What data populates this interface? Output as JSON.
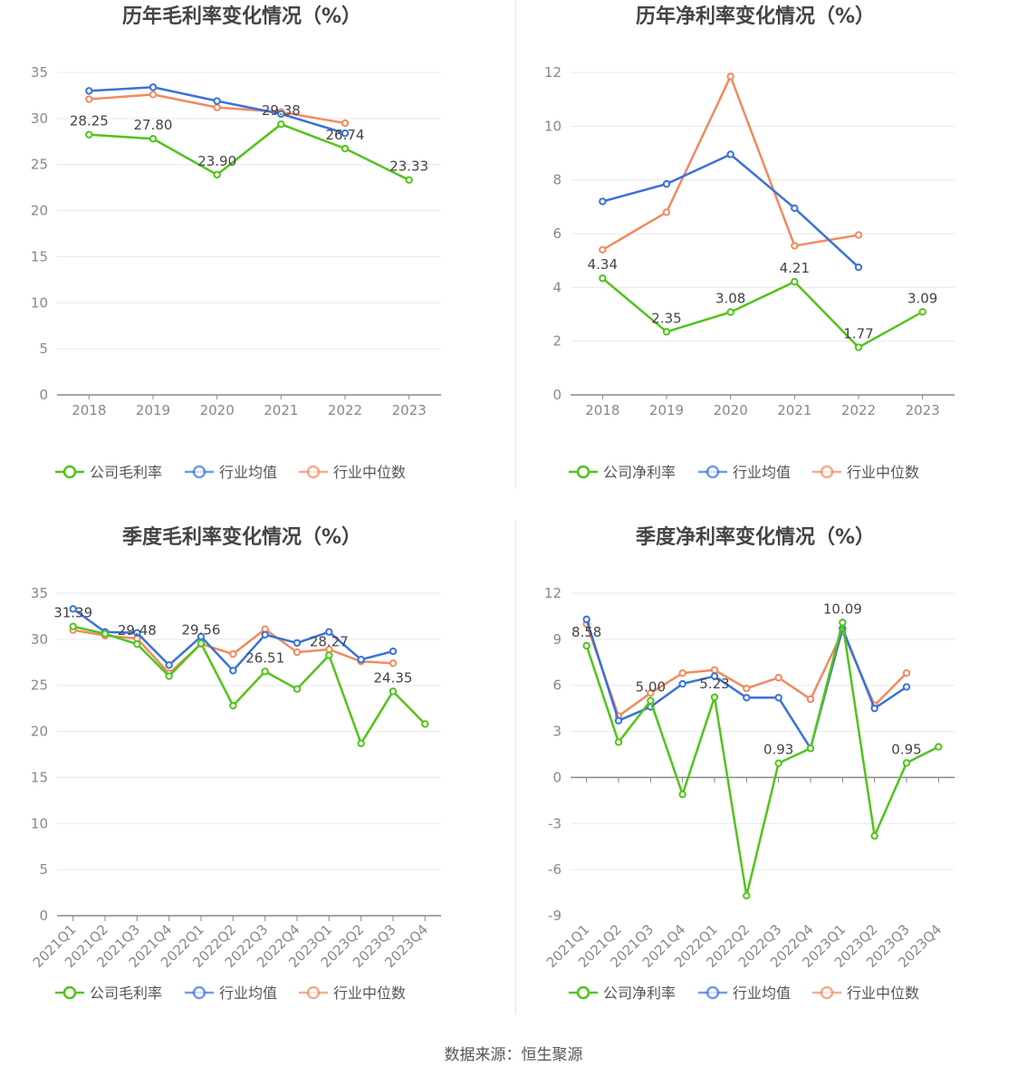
{
  "footer": "数据来源：恒生聚源",
  "colors": {
    "company": "#52c41a",
    "avg": "#3a72d8",
    "median": "#f28a5e"
  },
  "chart_data": [
    {
      "type": "line",
      "title": "历年毛利率变化情况（%）",
      "categories": [
        "2018",
        "2019",
        "2020",
        "2021",
        "2022",
        "2023"
      ],
      "ylim": [
        0,
        35
      ],
      "yticks": [
        0,
        5,
        10,
        15,
        20,
        25,
        30,
        35
      ],
      "x_label_rotated": false,
      "legend_position": "bottom",
      "series": [
        {
          "name": "公司毛利率",
          "key": "company",
          "values": [
            28.25,
            27.8,
            23.9,
            29.38,
            26.74,
            23.33
          ],
          "labels": [
            "28.25",
            "27.80",
            "23.90",
            "29.38",
            "26.74",
            "23.33"
          ]
        },
        {
          "name": "行业均值",
          "key": "avg",
          "values": [
            33.0,
            33.4,
            31.9,
            30.5,
            28.4,
            null
          ]
        },
        {
          "name": "行业中位数",
          "key": "median",
          "values": [
            32.1,
            32.6,
            31.2,
            30.7,
            29.5,
            null
          ]
        }
      ]
    },
    {
      "type": "line",
      "title": "历年净利率变化情况（%）",
      "categories": [
        "2018",
        "2019",
        "2020",
        "2021",
        "2022",
        "2023"
      ],
      "ylim": [
        0,
        12
      ],
      "yticks": [
        0,
        2,
        4,
        6,
        8,
        10,
        12
      ],
      "x_label_rotated": false,
      "legend_position": "bottom",
      "series": [
        {
          "name": "公司净利率",
          "key": "company",
          "values": [
            4.34,
            2.35,
            3.08,
            4.21,
            1.77,
            3.09
          ],
          "labels": [
            "4.34",
            "2.35",
            "3.08",
            "4.21",
            "1.77",
            "3.09"
          ]
        },
        {
          "name": "行业均值",
          "key": "avg",
          "values": [
            7.2,
            7.85,
            8.95,
            6.95,
            4.75,
            null
          ]
        },
        {
          "name": "行业中位数",
          "key": "median",
          "values": [
            5.4,
            6.8,
            11.85,
            5.55,
            5.95,
            null
          ]
        }
      ]
    },
    {
      "type": "line",
      "title": "季度毛利率变化情况（%）",
      "categories": [
        "2021Q1",
        "2021Q2",
        "2021Q3",
        "2021Q4",
        "2022Q1",
        "2022Q2",
        "2022Q3",
        "2022Q4",
        "2023Q1",
        "2023Q2",
        "2023Q3",
        "2023Q4"
      ],
      "ylim": [
        0,
        35
      ],
      "yticks": [
        0,
        5,
        10,
        15,
        20,
        25,
        30,
        35
      ],
      "x_label_rotated": true,
      "legend_position": "bottom",
      "series": [
        {
          "name": "公司毛利率",
          "key": "company",
          "values": [
            31.39,
            30.6,
            29.48,
            26.0,
            29.56,
            22.8,
            26.51,
            24.6,
            28.27,
            18.7,
            24.35,
            20.8
          ],
          "labels": [
            "31.39",
            "",
            "29.48",
            "",
            "29.56",
            "",
            "26.51",
            "",
            "28.27",
            "",
            "24.35",
            ""
          ]
        },
        {
          "name": "行业均值",
          "key": "avg",
          "values": [
            33.3,
            30.8,
            30.7,
            27.2,
            30.3,
            26.6,
            30.5,
            29.6,
            30.8,
            27.8,
            28.7,
            null
          ]
        },
        {
          "name": "行业中位数",
          "key": "median",
          "values": [
            31.0,
            30.4,
            30.1,
            26.3,
            29.5,
            28.4,
            31.1,
            28.6,
            28.9,
            27.6,
            27.4,
            null
          ]
        }
      ]
    },
    {
      "type": "line",
      "title": "季度净利率变化情况（%）",
      "categories": [
        "2021Q1",
        "2021Q2",
        "2021Q3",
        "2021Q4",
        "2022Q1",
        "2022Q2",
        "2022Q3",
        "2022Q4",
        "2023Q1",
        "2023Q2",
        "2023Q3",
        "2023Q4"
      ],
      "ylim": [
        -9,
        12
      ],
      "yticks": [
        -9,
        -6,
        -3,
        0,
        3,
        6,
        9,
        12
      ],
      "x_label_rotated": true,
      "legend_position": "bottom",
      "series": [
        {
          "name": "公司净利率",
          "key": "company",
          "values": [
            8.58,
            2.3,
            5.0,
            -1.1,
            5.23,
            -7.7,
            0.93,
            1.9,
            10.09,
            -3.8,
            0.95,
            2.0
          ],
          "labels": [
            "8.58",
            "",
            "5.00",
            "",
            "5.23",
            "",
            "0.93",
            "",
            "10.09",
            "",
            "0.95",
            ""
          ]
        },
        {
          "name": "行业均值",
          "key": "avg",
          "values": [
            10.3,
            3.7,
            4.6,
            6.1,
            6.6,
            5.2,
            5.2,
            1.9,
            9.7,
            4.5,
            5.9,
            null
          ]
        },
        {
          "name": "行业中位数",
          "key": "median",
          "values": [
            10.0,
            4.0,
            5.5,
            6.8,
            7.0,
            5.8,
            6.5,
            5.1,
            9.5,
            4.7,
            6.8,
            null
          ]
        }
      ]
    }
  ]
}
